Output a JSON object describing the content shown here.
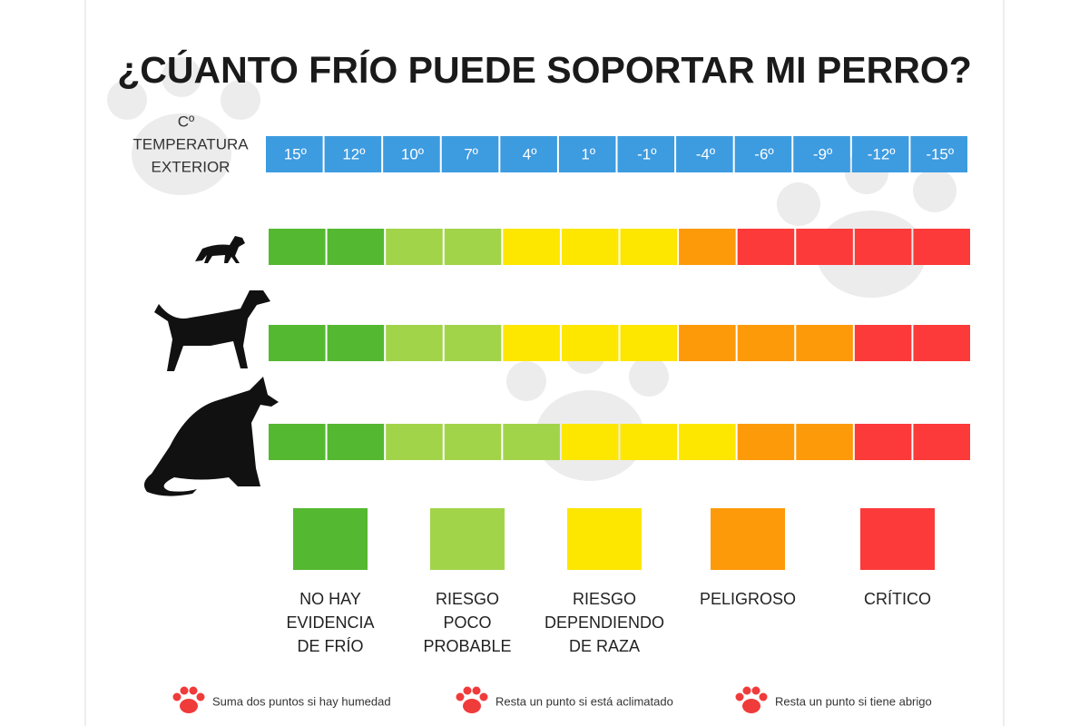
{
  "title": "¿CÚANTO FRÍO PUEDE SOPORTAR MI PERRO?",
  "temperature_label": [
    "Cº",
    "TEMPERATURA",
    "EXTERIOR"
  ],
  "temperatures": [
    "15º",
    "12º",
    "10º",
    "7º",
    "4º",
    "1º",
    "-1º",
    "-4º",
    "-6º",
    "-9º",
    "-12º",
    "-15º"
  ],
  "temperature_color": "#3d9be0",
  "rows": [
    {
      "colors": [
        "#55b831",
        "#55b831",
        "#a2d44a",
        "#a2d44a",
        "#fde600",
        "#fde600",
        "#fde600",
        "#fd9a0a",
        "#fc3a3a",
        "#fc3a3a",
        "#fc3a3a",
        "#fc3a3a"
      ]
    },
    {
      "colors": [
        "#55b831",
        "#55b831",
        "#a2d44a",
        "#a2d44a",
        "#fde600",
        "#fde600",
        "#fde600",
        "#fd9a0a",
        "#fd9a0a",
        "#fd9a0a",
        "#fc3a3a",
        "#fc3a3a"
      ]
    },
    {
      "colors": [
        "#55b831",
        "#55b831",
        "#a2d44a",
        "#a2d44a",
        "#a2d44a",
        "#fde600",
        "#fde600",
        "#fde600",
        "#fd9a0a",
        "#fd9a0a",
        "#fc3a3a",
        "#fc3a3a"
      ]
    }
  ],
  "legend": [
    {
      "color": "#55b831",
      "label": [
        "NO HAY",
        "EVIDENCIA",
        "DE FRÍO"
      ]
    },
    {
      "color": "#a2d44a",
      "label": [
        "RIESGO",
        "POCO",
        "PROBABLE"
      ]
    },
    {
      "color": "#fde600",
      "label": [
        "RIESGO",
        "DEPENDIENDO",
        "DE RAZA"
      ]
    },
    {
      "color": "#fd9a0a",
      "label": [
        "PELIGROSO"
      ]
    },
    {
      "color": "#fc3a3a",
      "label": [
        "CRÍTICO"
      ]
    }
  ],
  "notes": [
    "Suma dos puntos si hay humedad",
    "Resta un punto si está aclimatado",
    "Resta un punto si tiene abrigo"
  ]
}
